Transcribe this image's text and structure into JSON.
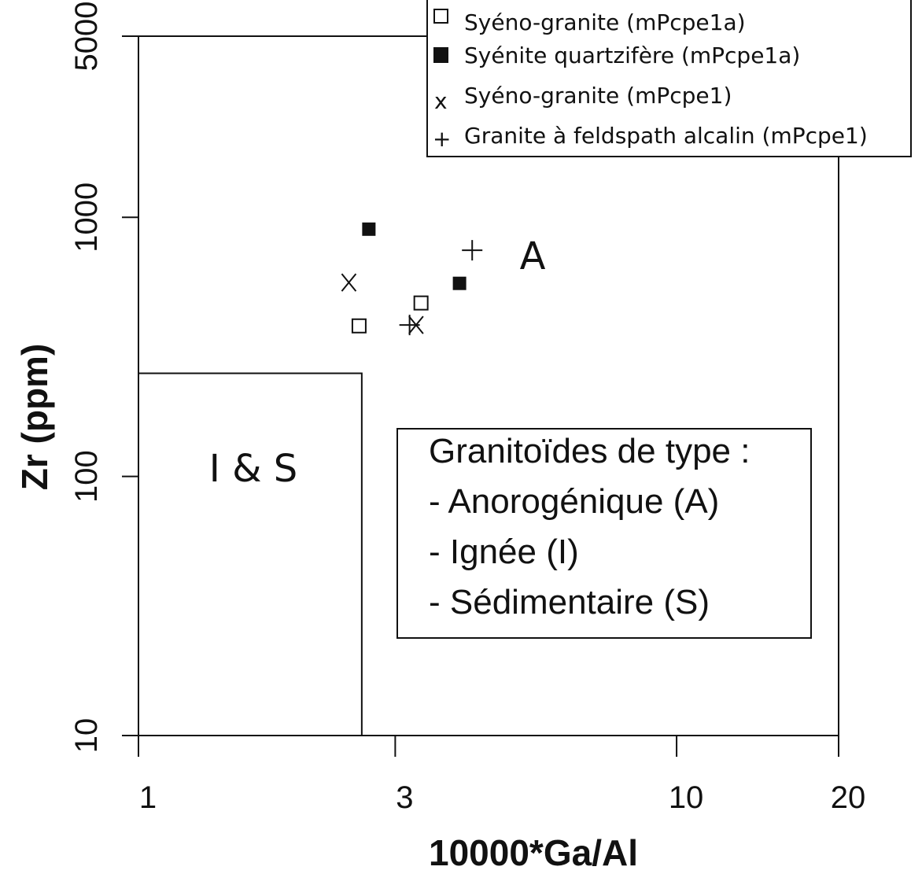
{
  "chart_data": {
    "type": "scatter",
    "title": "",
    "xlabel": "10000*Ga/Al",
    "ylabel": "Zr (ppm)",
    "xscale": "log",
    "yscale": "log",
    "xlim": [
      1,
      20
    ],
    "ylim": [
      10,
      5000
    ],
    "xticks": [
      {
        "value": 1,
        "label": "1"
      },
      {
        "value": 3,
        "label": "3"
      },
      {
        "value": 10,
        "label": "10"
      },
      {
        "value": 20,
        "label": "20"
      }
    ],
    "yticks": [
      {
        "value": 10,
        "label": "10"
      },
      {
        "value": 100,
        "label": "100"
      },
      {
        "value": 1000,
        "label": "1000"
      },
      {
        "value": 5000,
        "label": "5000"
      }
    ],
    "grid": false,
    "legend_position": "top-right",
    "series": [
      {
        "name": "Syéno-granite (mPcpe1a)",
        "marker": "open-square",
        "points": [
          [
            2.57,
            381
          ],
          [
            3.35,
            467
          ]
        ]
      },
      {
        "name": "Syénite quartzifère (mPcpe1a)",
        "marker": "filled-square",
        "points": [
          [
            2.68,
            900
          ],
          [
            3.95,
            556
          ]
        ]
      },
      {
        "name": "Syéno-granite (mPcpe1)",
        "marker": "x",
        "legend_symbol": "x",
        "points": [
          [
            2.46,
            560
          ],
          [
            3.28,
            384
          ]
        ]
      },
      {
        "name": "Granite à feldspath alcalin (mPcpe1)",
        "marker": "plus",
        "legend_symbol": "+",
        "points": [
          [
            4.17,
            746
          ],
          [
            3.19,
            384
          ]
        ]
      }
    ],
    "regions": [
      {
        "label": "I & S",
        "x_max": 2.6,
        "y_max": 250
      },
      {
        "label": "A"
      }
    ],
    "annotation": {
      "title": "Granitoïdes de type :",
      "lines": [
        "- Anorogénique (A)",
        "- Ignée (I)",
        "- Sédimentaire (S)"
      ]
    }
  }
}
